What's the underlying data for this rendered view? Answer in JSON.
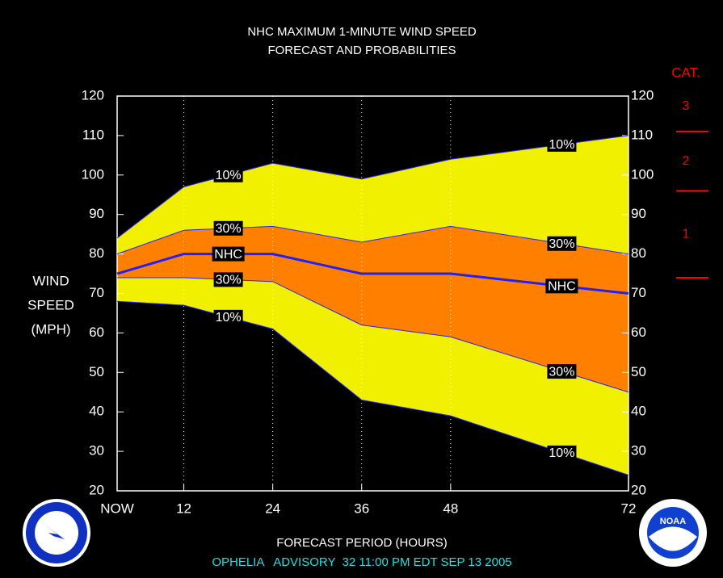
{
  "chart_data": {
    "type": "band",
    "title": [
      "NHC MAXIMUM 1-MINUTE WIND SPEED",
      "FORECAST AND PROBABILITIES"
    ],
    "ylabel": [
      "WIND",
      "SPEED",
      "(MPH)"
    ],
    "xlabel": "FORECAST PERIOD (HOURS)",
    "footer": "OPHELIA   ADVISORY  32 11:00 PM EDT SEP 13 2005",
    "x": [
      3,
      12,
      24,
      36,
      48,
      72
    ],
    "xlim": [
      3,
      72
    ],
    "xticks": [
      {
        "value": 3,
        "label": "NOW"
      },
      12,
      24,
      36,
      48,
      72
    ],
    "ylim": [
      20,
      120
    ],
    "yticks": [
      20,
      30,
      40,
      50,
      60,
      70,
      80,
      90,
      100,
      110,
      120
    ],
    "grid": true,
    "line_color": "#2020ff",
    "series": [
      {
        "name": "10%",
        "values": [
          84,
          97,
          103,
          99,
          104,
          110
        ]
      },
      {
        "name": "30%",
        "values": [
          80,
          86,
          87,
          83,
          87,
          80
        ]
      },
      {
        "name": "NHC",
        "values": [
          75,
          80,
          80,
          75,
          75,
          70
        ]
      },
      {
        "name": "30%",
        "values": [
          74,
          74,
          73,
          62,
          59,
          45
        ]
      },
      {
        "name": "10%",
        "values": [
          68,
          67,
          61,
          43,
          39,
          24
        ]
      }
    ],
    "bands": [
      {
        "from": 0,
        "to": 4,
        "color": "#f0f000"
      },
      {
        "from": 1,
        "to": 3,
        "color": "#ff8000"
      }
    ],
    "category_scale": {
      "title": "CAT.",
      "color": "#ff0000",
      "levels": [
        {
          "label": "1",
          "threshold": 74
        },
        {
          "label": "2",
          "threshold": 96
        },
        {
          "label": "3",
          "threshold": 111
        }
      ]
    }
  }
}
